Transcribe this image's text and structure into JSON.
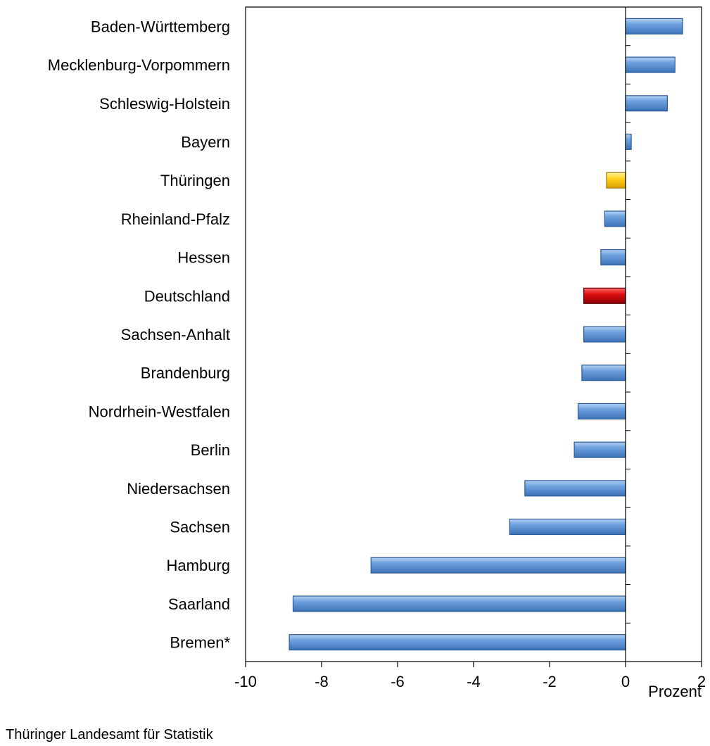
{
  "chart_data": {
    "type": "bar",
    "orientation": "horizontal",
    "categories": [
      "Baden-Württemberg",
      "Mecklenburg-Vorpommern",
      "Schleswig-Holstein",
      "Bayern",
      "Thüringen",
      "Rheinland-Pfalz",
      "Hessen",
      "Deutschland",
      "Sachsen-Anhalt",
      "Brandenburg",
      "Nordrhein-Westfalen",
      "Berlin",
      "Niedersachsen",
      "Sachsen",
      "Hamburg",
      "Saarland",
      "Bremen*"
    ],
    "values": [
      1.5,
      1.3,
      1.1,
      0.15,
      -0.5,
      -0.55,
      -0.65,
      -1.1,
      -1.1,
      -1.15,
      -1.25,
      -1.35,
      -2.65,
      -3.05,
      -6.7,
      -8.75,
      -8.85
    ],
    "bar_colors": [
      "#5f97d8",
      "#5f97d8",
      "#5f97d8",
      "#5f97d8",
      "#f2bf00",
      "#5f97d8",
      "#5f97d8",
      "#c8101a",
      "#5f97d8",
      "#5f97d8",
      "#5f97d8",
      "#5f97d8",
      "#5f97d8",
      "#5f97d8",
      "#5f97d8",
      "#5f97d8",
      "#5f97d8"
    ],
    "xlim": [
      -10,
      2
    ],
    "xticks": [
      -10,
      -8,
      -6,
      -4,
      -2,
      0,
      2
    ],
    "xlabel": "Prozent",
    "grid": false
  },
  "footer": "Thüringer Landesamt für Statistik"
}
